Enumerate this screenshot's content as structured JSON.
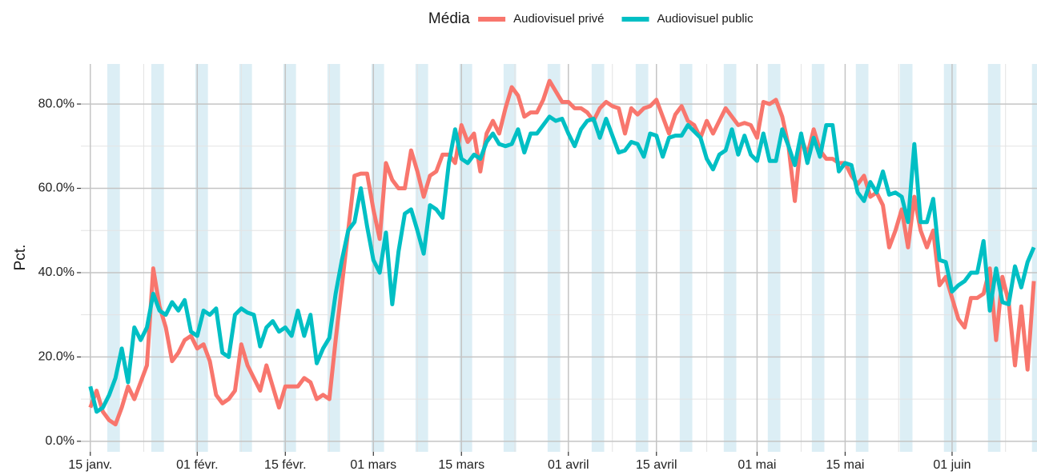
{
  "chart_data": {
    "type": "line",
    "ylabel": "Pct.",
    "legend_title": "Média",
    "legend_position": "top",
    "grid": true,
    "x": [
      0,
      1,
      2,
      3,
      4,
      5,
      6,
      7,
      8,
      9,
      10,
      11,
      12,
      13,
      14,
      15,
      16,
      17,
      18,
      19,
      20,
      21,
      22,
      23,
      24,
      25,
      26,
      27,
      28,
      29,
      30,
      31,
      32,
      33,
      34,
      35,
      36,
      37,
      38,
      39,
      40,
      41,
      42,
      43,
      44,
      45,
      46,
      47,
      48,
      49,
      50,
      51,
      52,
      53,
      54,
      55,
      56,
      57,
      58,
      59,
      60,
      61,
      62,
      63,
      64,
      65,
      66,
      67,
      68,
      69,
      70,
      71,
      72,
      73,
      74,
      75,
      76,
      77,
      78,
      79,
      80,
      81,
      82,
      83,
      84,
      85,
      86,
      87,
      88,
      89,
      90,
      91,
      92,
      93,
      94,
      95,
      96,
      97,
      98,
      99,
      100,
      101,
      102,
      103,
      104,
      105,
      106,
      107,
      108,
      109,
      110,
      111,
      112,
      113,
      114,
      115,
      116,
      117,
      118,
      119,
      120,
      121,
      122,
      123,
      124,
      125,
      126,
      127,
      128,
      129,
      130,
      131,
      132,
      133,
      134,
      135,
      136,
      137,
      138,
      139,
      140,
      141,
      142,
      143,
      144,
      145,
      146,
      147,
      148,
      149,
      150
    ],
    "xlim": [
      -1.5,
      150.5
    ],
    "xticks": [
      {
        "value": 0,
        "label": "15 janv."
      },
      {
        "value": 17,
        "label": "01 févr."
      },
      {
        "value": 31,
        "label": "15 févr."
      },
      {
        "value": 45,
        "label": "01 mars"
      },
      {
        "value": 59,
        "label": "15 mars"
      },
      {
        "value": 76,
        "label": "01 avril"
      },
      {
        "value": 90,
        "label": "15 avril"
      },
      {
        "value": 106,
        "label": "01 mai"
      },
      {
        "value": 120,
        "label": "15 mai"
      },
      {
        "value": 137,
        "label": "01 juin"
      }
    ],
    "ylim": [
      -2.5,
      89.5
    ],
    "yticks": [
      {
        "value": 0,
        "label": "0.0%"
      },
      {
        "value": 20,
        "label": "20.0%"
      },
      {
        "value": 40,
        "label": "40.0%"
      },
      {
        "value": 60,
        "label": "60.0%"
      },
      {
        "value": 80,
        "label": "80.0%"
      }
    ],
    "series": [
      {
        "name": "Audiovisuel privé",
        "color": "#F8766D",
        "values": [
          8,
          12,
          7,
          5,
          4,
          8,
          13,
          10,
          14,
          18,
          41,
          32,
          27,
          19,
          21,
          24,
          25,
          22,
          23,
          19,
          11,
          9,
          10,
          12,
          23,
          18,
          15,
          12,
          18,
          13,
          8,
          13,
          13,
          13,
          15,
          14,
          10,
          11,
          10,
          24,
          37,
          50,
          63,
          63.5,
          63.5,
          55,
          48,
          66,
          62,
          60,
          60,
          69,
          64,
          58,
          63,
          64,
          68,
          68,
          66,
          75,
          71,
          73,
          64,
          73,
          76,
          73,
          79,
          84,
          82,
          77,
          78,
          78,
          81,
          85.5,
          83,
          80.5,
          80.5,
          79,
          79,
          78,
          76,
          79,
          80.5,
          79.5,
          79,
          73,
          79,
          77.5,
          79,
          79.5,
          81,
          77,
          73,
          77.5,
          79.5,
          76,
          75,
          72,
          76,
          73,
          76,
          79,
          77,
          75,
          75.5,
          75,
          72,
          80.5,
          80,
          81,
          77,
          70,
          57,
          72,
          68,
          74,
          69,
          67,
          67,
          66,
          66,
          63,
          61,
          63,
          58,
          59,
          56,
          46,
          50,
          55,
          46,
          58,
          50,
          46,
          50,
          37,
          39,
          34,
          29,
          27,
          34,
          34,
          35,
          41,
          24,
          39,
          33,
          18,
          32,
          17,
          38
        ]
      },
      {
        "name": "Audiovisuel public",
        "color": "#00BFC4",
        "values": [
          13,
          7,
          8,
          11,
          15,
          22,
          14,
          27,
          24,
          27,
          35,
          31,
          30,
          33,
          31,
          33.5,
          26,
          25,
          31,
          30,
          31.5,
          21,
          20,
          30,
          31.5,
          30.5,
          30,
          22.5,
          27,
          28.5,
          26,
          27,
          25,
          31,
          25,
          30,
          18.5,
          22,
          24.5,
          35,
          43,
          50,
          52,
          60,
          51,
          43,
          40,
          49.5,
          32.5,
          45,
          54,
          55,
          50,
          44.5,
          56,
          55,
          53,
          66,
          74,
          67,
          66,
          68,
          67,
          71,
          73,
          70.5,
          70,
          70.5,
          74,
          68.5,
          73,
          73,
          75,
          77,
          76,
          76.5,
          73,
          70,
          74,
          76,
          76.5,
          72,
          76.5,
          72.5,
          68.5,
          69,
          71,
          70.5,
          67.5,
          73,
          72.5,
          67.5,
          72,
          72.5,
          72.5,
          75,
          73.5,
          72,
          67,
          64.5,
          68,
          69,
          74,
          68,
          72.5,
          68,
          66.5,
          73,
          66.5,
          66.5,
          74,
          70,
          65.5,
          73,
          66,
          72,
          67.5,
          75,
          75,
          64,
          66,
          65.5,
          59,
          57,
          61.5,
          59,
          64,
          58.5,
          59,
          58,
          52,
          70.5,
          52,
          52,
          57.5,
          43,
          42.5,
          35.5,
          37,
          38,
          40,
          40,
          47.5,
          31,
          41,
          33,
          32.5,
          41.5,
          36.5,
          42.5,
          46
        ]
      }
    ]
  }
}
